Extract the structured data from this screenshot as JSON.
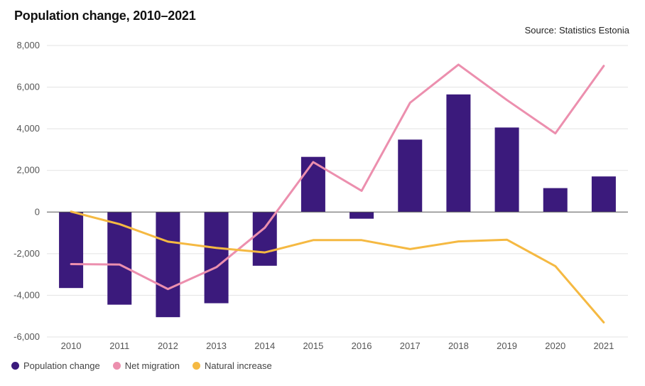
{
  "chart_data": {
    "type": "bar+line",
    "title": "Population change, 2010–2021",
    "source": "Source: Statistics Estonia",
    "categories": [
      "2010",
      "2011",
      "2012",
      "2013",
      "2014",
      "2015",
      "2016",
      "2017",
      "2018",
      "2019",
      "2020",
      "2021"
    ],
    "ylim": [
      -6000,
      8000
    ],
    "yticks": [
      -6000,
      -4000,
      -2000,
      0,
      2000,
      4000,
      6000,
      8000
    ],
    "ytick_labels": [
      "-6,000",
      "-4,000",
      "-2,000",
      "0",
      "2,000",
      "4,000",
      "6,000",
      "8,000"
    ],
    "series": [
      {
        "name": "Population change",
        "type": "bar",
        "color": "#3b1a7c",
        "values": [
          -3650,
          -4450,
          -5050,
          -4380,
          -2580,
          2650,
          -320,
          3480,
          5650,
          4060,
          1150,
          1710
        ]
      },
      {
        "name": "Net migration",
        "type": "line",
        "color": "#ec8fae",
        "values": [
          -2500,
          -2520,
          -3700,
          -2650,
          -750,
          2400,
          1020,
          5250,
          7080,
          5380,
          3780,
          7020
        ]
      },
      {
        "name": "Natural increase",
        "type": "line",
        "color": "#f5b942",
        "values": [
          20,
          -580,
          -1420,
          -1720,
          -1940,
          -1350,
          -1350,
          -1780,
          -1410,
          -1330,
          -2600,
          -5300
        ]
      }
    ]
  }
}
